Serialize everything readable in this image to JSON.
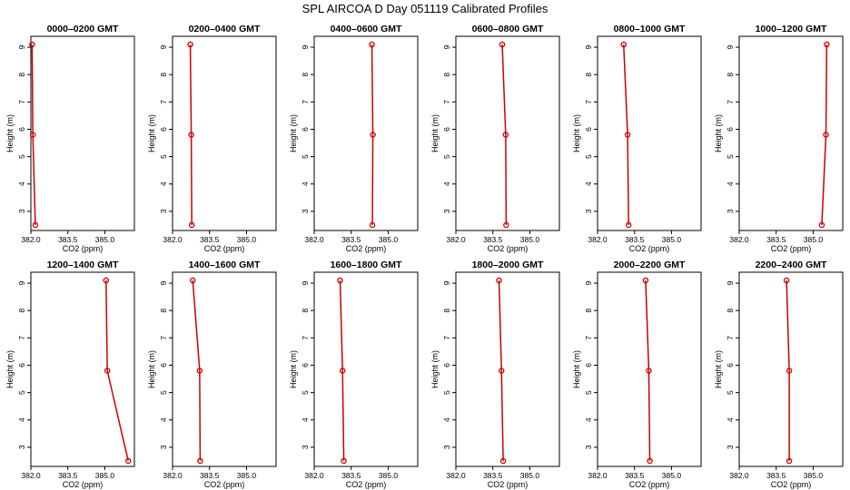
{
  "figure": {
    "title": "SPL AIRCOA D  Day 051119  Calibrated Profiles",
    "line_color": "#cc0000",
    "axis_color": "#000000"
  },
  "chart_data": [
    {
      "type": "line",
      "title": "0000–0200 GMT",
      "xlabel": "CO2 (ppm)",
      "ylabel": "Height (m)",
      "xlim": [
        382.0,
        386.2
      ],
      "ylim": [
        2.3,
        9.4
      ],
      "x_ticks": [
        "382.0",
        "383.5",
        "385.0"
      ],
      "y_ticks": [
        "3",
        "4",
        "5",
        "6",
        "7",
        "8",
        "9"
      ],
      "grid": false,
      "series": [
        {
          "x": [
            382.05,
            382.08,
            382.18
          ],
          "y": [
            9.1,
            5.8,
            2.5
          ]
        }
      ]
    },
    {
      "type": "line",
      "title": "0200–0400 GMT",
      "xlabel": "CO2 (ppm)",
      "ylabel": "Height (m)",
      "xlim": [
        382.0,
        386.2
      ],
      "ylim": [
        2.3,
        9.4
      ],
      "x_ticks": [
        "382.0",
        "383.5",
        "385.0"
      ],
      "y_ticks": [
        "3",
        "4",
        "5",
        "6",
        "7",
        "8",
        "9"
      ],
      "grid": false,
      "series": [
        {
          "x": [
            382.72,
            382.76,
            382.78
          ],
          "y": [
            9.1,
            5.8,
            2.5
          ]
        }
      ]
    },
    {
      "type": "line",
      "title": "0400–0600 GMT",
      "xlabel": "CO2 (ppm)",
      "ylabel": "Height (m)",
      "xlim": [
        382.0,
        386.2
      ],
      "ylim": [
        2.3,
        9.4
      ],
      "x_ticks": [
        "382.0",
        "383.5",
        "385.0"
      ],
      "y_ticks": [
        "3",
        "4",
        "5",
        "6",
        "7",
        "8",
        "9"
      ],
      "grid": false,
      "series": [
        {
          "x": [
            384.34,
            384.38,
            384.36
          ],
          "y": [
            9.1,
            5.8,
            2.5
          ]
        }
      ]
    },
    {
      "type": "line",
      "title": "0600–0800 GMT",
      "xlabel": "CO2 (ppm)",
      "ylabel": "Height (m)",
      "xlim": [
        382.0,
        386.2
      ],
      "ylim": [
        2.3,
        9.4
      ],
      "x_ticks": [
        "382.0",
        "383.5",
        "385.0"
      ],
      "y_ticks": [
        "3",
        "4",
        "5",
        "6",
        "7",
        "8",
        "9"
      ],
      "grid": false,
      "series": [
        {
          "x": [
            383.88,
            384.02,
            384.04
          ],
          "y": [
            9.1,
            5.8,
            2.5
          ]
        }
      ]
    },
    {
      "type": "line",
      "title": "0800–1000 GMT",
      "xlabel": "CO2 (ppm)",
      "ylabel": "Height (m)",
      "xlim": [
        382.0,
        386.2
      ],
      "ylim": [
        2.3,
        9.4
      ],
      "x_ticks": [
        "382.0",
        "383.5",
        "385.0"
      ],
      "y_ticks": [
        "3",
        "4",
        "5",
        "6",
        "7",
        "8",
        "9"
      ],
      "grid": false,
      "series": [
        {
          "x": [
            383.06,
            383.22,
            383.26
          ],
          "y": [
            9.1,
            5.8,
            2.5
          ]
        }
      ]
    },
    {
      "type": "line",
      "title": "1000–1200 GMT",
      "xlabel": "CO2 (ppm)",
      "ylabel": "Height (m)",
      "xlim": [
        382.0,
        386.2
      ],
      "ylim": [
        2.3,
        9.4
      ],
      "x_ticks": [
        "382.0",
        "383.5",
        "385.0"
      ],
      "y_ticks": [
        "3",
        "4",
        "5",
        "6",
        "7",
        "8",
        "9"
      ],
      "grid": false,
      "series": [
        {
          "x": [
            385.55,
            385.52,
            385.35
          ],
          "y": [
            9.1,
            5.8,
            2.5
          ]
        }
      ]
    },
    {
      "type": "line",
      "title": "1200–1400 GMT",
      "xlabel": "CO2 (ppm)",
      "ylabel": "Height (m)",
      "xlim": [
        382.0,
        386.2
      ],
      "ylim": [
        2.3,
        9.4
      ],
      "x_ticks": [
        "382.0",
        "383.5",
        "385.0"
      ],
      "y_ticks": [
        "3",
        "4",
        "5",
        "6",
        "7",
        "8",
        "9"
      ],
      "grid": false,
      "series": [
        {
          "x": [
            385.05,
            385.1,
            385.95
          ],
          "y": [
            9.1,
            5.8,
            2.5
          ]
        }
      ]
    },
    {
      "type": "line",
      "title": "1400–1600 GMT",
      "xlabel": "CO2 (ppm)",
      "ylabel": "Height (m)",
      "xlim": [
        382.0,
        386.2
      ],
      "ylim": [
        2.3,
        9.4
      ],
      "x_ticks": [
        "382.0",
        "383.5",
        "385.0"
      ],
      "y_ticks": [
        "3",
        "4",
        "5",
        "6",
        "7",
        "8",
        "9"
      ],
      "grid": false,
      "series": [
        {
          "x": [
            382.82,
            383.1,
            383.12
          ],
          "y": [
            9.1,
            5.8,
            2.5
          ]
        }
      ]
    },
    {
      "type": "line",
      "title": "1600–1800 GMT",
      "xlabel": "CO2 (ppm)",
      "ylabel": "Height (m)",
      "xlim": [
        382.0,
        386.2
      ],
      "ylim": [
        2.3,
        9.4
      ],
      "x_ticks": [
        "382.0",
        "383.5",
        "385.0"
      ],
      "y_ticks": [
        "3",
        "4",
        "5",
        "6",
        "7",
        "8",
        "9"
      ],
      "grid": false,
      "series": [
        {
          "x": [
            383.05,
            383.15,
            383.2
          ],
          "y": [
            9.1,
            5.8,
            2.5
          ]
        }
      ]
    },
    {
      "type": "line",
      "title": "1800–2000 GMT",
      "xlabel": "CO2 (ppm)",
      "ylabel": "Height (m)",
      "xlim": [
        382.0,
        386.2
      ],
      "ylim": [
        2.3,
        9.4
      ],
      "x_ticks": [
        "382.0",
        "383.5",
        "385.0"
      ],
      "y_ticks": [
        "3",
        "4",
        "5",
        "6",
        "7",
        "8",
        "9"
      ],
      "grid": false,
      "series": [
        {
          "x": [
            383.75,
            383.85,
            383.92
          ],
          "y": [
            9.1,
            5.8,
            2.5
          ]
        }
      ]
    },
    {
      "type": "line",
      "title": "2000–2200 GMT",
      "xlabel": "CO2 (ppm)",
      "ylabel": "Height (m)",
      "xlim": [
        382.0,
        386.2
      ],
      "ylim": [
        2.3,
        9.4
      ],
      "x_ticks": [
        "382.0",
        "383.5",
        "385.0"
      ],
      "y_ticks": [
        "3",
        "4",
        "5",
        "6",
        "7",
        "8",
        "9"
      ],
      "grid": false,
      "series": [
        {
          "x": [
            383.95,
            384.08,
            384.12
          ],
          "y": [
            9.1,
            5.8,
            2.5
          ]
        }
      ]
    },
    {
      "type": "line",
      "title": "2200–2400 GMT",
      "xlabel": "CO2 (ppm)",
      "ylabel": "Height (m)",
      "xlim": [
        382.0,
        386.2
      ],
      "ylim": [
        2.3,
        9.4
      ],
      "x_ticks": [
        "382.0",
        "383.5",
        "385.0"
      ],
      "y_ticks": [
        "3",
        "4",
        "5",
        "6",
        "7",
        "8",
        "9"
      ],
      "grid": false,
      "series": [
        {
          "x": [
            383.92,
            384.03,
            384.03
          ],
          "y": [
            9.1,
            5.8,
            2.5
          ]
        }
      ]
    }
  ]
}
